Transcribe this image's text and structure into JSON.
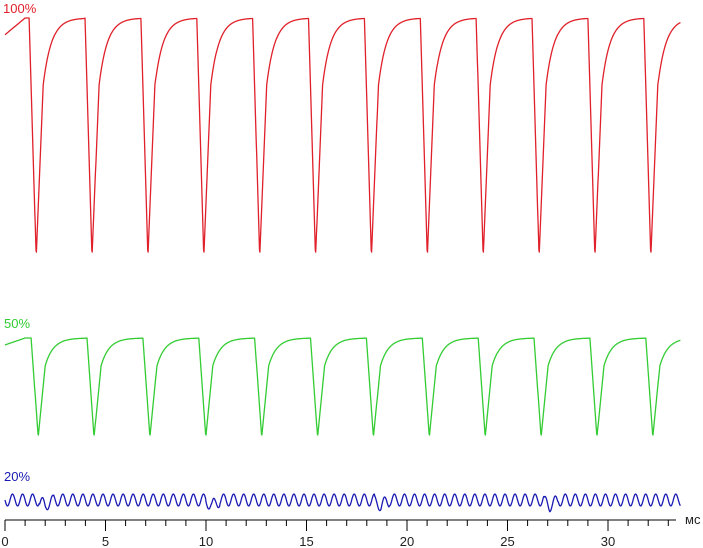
{
  "chart_data": {
    "type": "line",
    "x_unit": "мс",
    "xlim": [
      0,
      33.5
    ],
    "x_ticks": [
      0,
      5,
      10,
      15,
      20,
      25,
      30
    ],
    "x_minor_step": 1,
    "grid": false,
    "legend": "none",
    "series": [
      {
        "name": "100%",
        "color": "#e0202a",
        "period_ms": 2.78,
        "first_dip_ms": 1.55,
        "dip_width_ms": 0.35,
        "plateau_level": 1.0,
        "dip_level": 0.0,
        "end_ms": 33.6
      },
      {
        "name": "50%",
        "color": "#33cc33",
        "period_ms": 2.78,
        "first_dip_ms": 1.65,
        "dip_width_ms": 0.35,
        "plateau_level": 1.0,
        "dip_level": 0.0,
        "end_ms": 33.6
      },
      {
        "name": "20%",
        "color": "#1a1ab3",
        "ripple_period_ms": 0.5,
        "ripple_amplitude": 0.5,
        "disturbances_ms": [
          1.8,
          10.1,
          18.5,
          26.9
        ],
        "end_ms": 33.6
      }
    ]
  }
}
